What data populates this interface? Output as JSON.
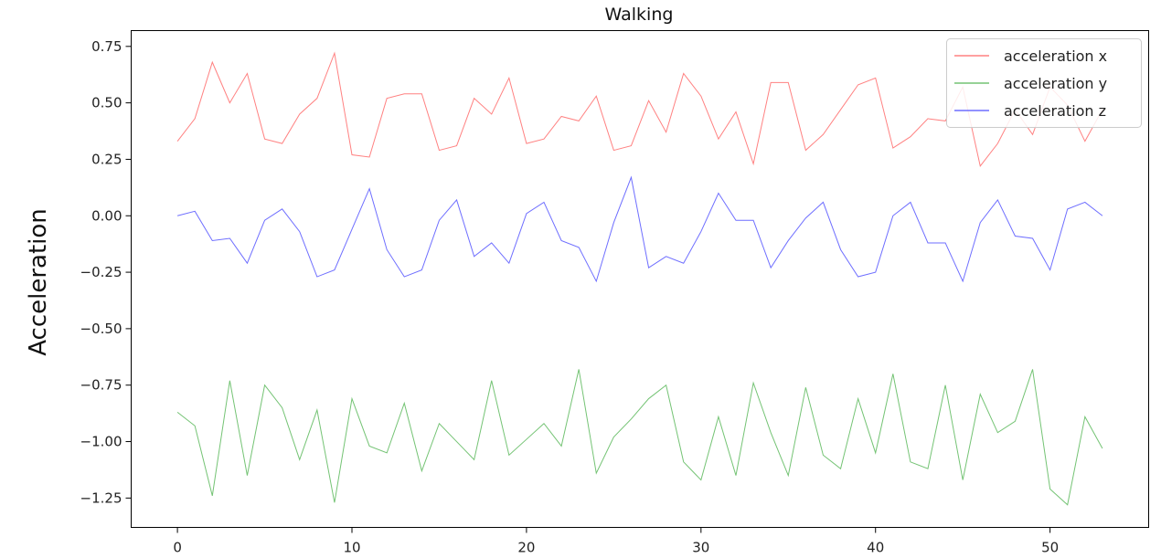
{
  "chart_data": {
    "type": "line",
    "title": "Walking",
    "xlabel": "",
    "ylabel": "Acceleration",
    "xlim": [
      -2.65,
      55.65
    ],
    "ylim": [
      -1.38,
      0.82
    ],
    "xticks": [
      0,
      10,
      20,
      30,
      40,
      50
    ],
    "yticks": [
      0.75,
      0.5,
      0.25,
      0.0,
      -0.25,
      -0.5,
      -0.75,
      -1.0,
      -1.25
    ],
    "ytick_labels": [
      "0.75",
      "0.50",
      "0.25",
      "0.00",
      "−0.25",
      "−0.50",
      "−0.75",
      "−1.00",
      "−1.25"
    ],
    "grid": false,
    "legend_position": "top-right",
    "series": [
      {
        "name": "acceleration x",
        "color": "#ff6b6b",
        "values": [
          0.33,
          0.43,
          0.68,
          0.5,
          0.63,
          0.34,
          0.32,
          0.45,
          0.52,
          0.72,
          0.27,
          0.26,
          0.52,
          0.54,
          0.54,
          0.29,
          0.31,
          0.52,
          0.45,
          0.61,
          0.32,
          0.34,
          0.44,
          0.42,
          0.53,
          0.29,
          0.31,
          0.51,
          0.37,
          0.63,
          0.53,
          0.34,
          0.46,
          0.23,
          0.59,
          0.59,
          0.29,
          0.36,
          0.47,
          0.58,
          0.61,
          0.3,
          0.35,
          0.43,
          0.42,
          0.57,
          0.22,
          0.32,
          0.47,
          0.36,
          0.57,
          0.49,
          0.33,
          0.47
        ]
      },
      {
        "name": "acceleration y",
        "color": "#5cb85c",
        "values": [
          -0.87,
          -0.93,
          -1.24,
          -0.73,
          -1.15,
          -0.75,
          -0.85,
          -1.08,
          -0.86,
          -1.27,
          -0.81,
          -1.02,
          -1.05,
          -0.83,
          -1.13,
          -0.92,
          -1.0,
          -1.08,
          -0.73,
          -1.06,
          -0.99,
          -0.92,
          -1.02,
          -0.68,
          -1.14,
          -0.98,
          -0.9,
          -0.81,
          -0.75,
          -1.09,
          -1.17,
          -0.89,
          -1.15,
          -0.74,
          -0.96,
          -1.15,
          -0.76,
          -1.06,
          -1.12,
          -0.81,
          -1.05,
          -0.7,
          -1.09,
          -1.12,
          -0.75,
          -1.17,
          -0.79,
          -0.96,
          -0.91,
          -0.68,
          -1.21,
          -1.28,
          -0.89,
          -1.03
        ]
      },
      {
        "name": "acceleration z",
        "color": "#5555ff",
        "values": [
          0.0,
          0.02,
          -0.11,
          -0.1,
          -0.21,
          -0.02,
          0.03,
          -0.07,
          -0.27,
          -0.24,
          -0.06,
          0.12,
          -0.15,
          -0.27,
          -0.24,
          -0.02,
          0.07,
          -0.18,
          -0.12,
          -0.21,
          0.01,
          0.06,
          -0.11,
          -0.14,
          -0.29,
          -0.03,
          0.17,
          -0.23,
          -0.18,
          -0.21,
          -0.07,
          0.1,
          -0.02,
          -0.02,
          -0.23,
          -0.11,
          -0.01,
          0.06,
          -0.15,
          -0.27,
          -0.25,
          0.0,
          0.06,
          -0.12,
          -0.12,
          -0.29,
          -0.03,
          0.07,
          -0.09,
          -0.1,
          -0.24,
          0.03,
          0.06,
          0.0
        ]
      }
    ]
  }
}
